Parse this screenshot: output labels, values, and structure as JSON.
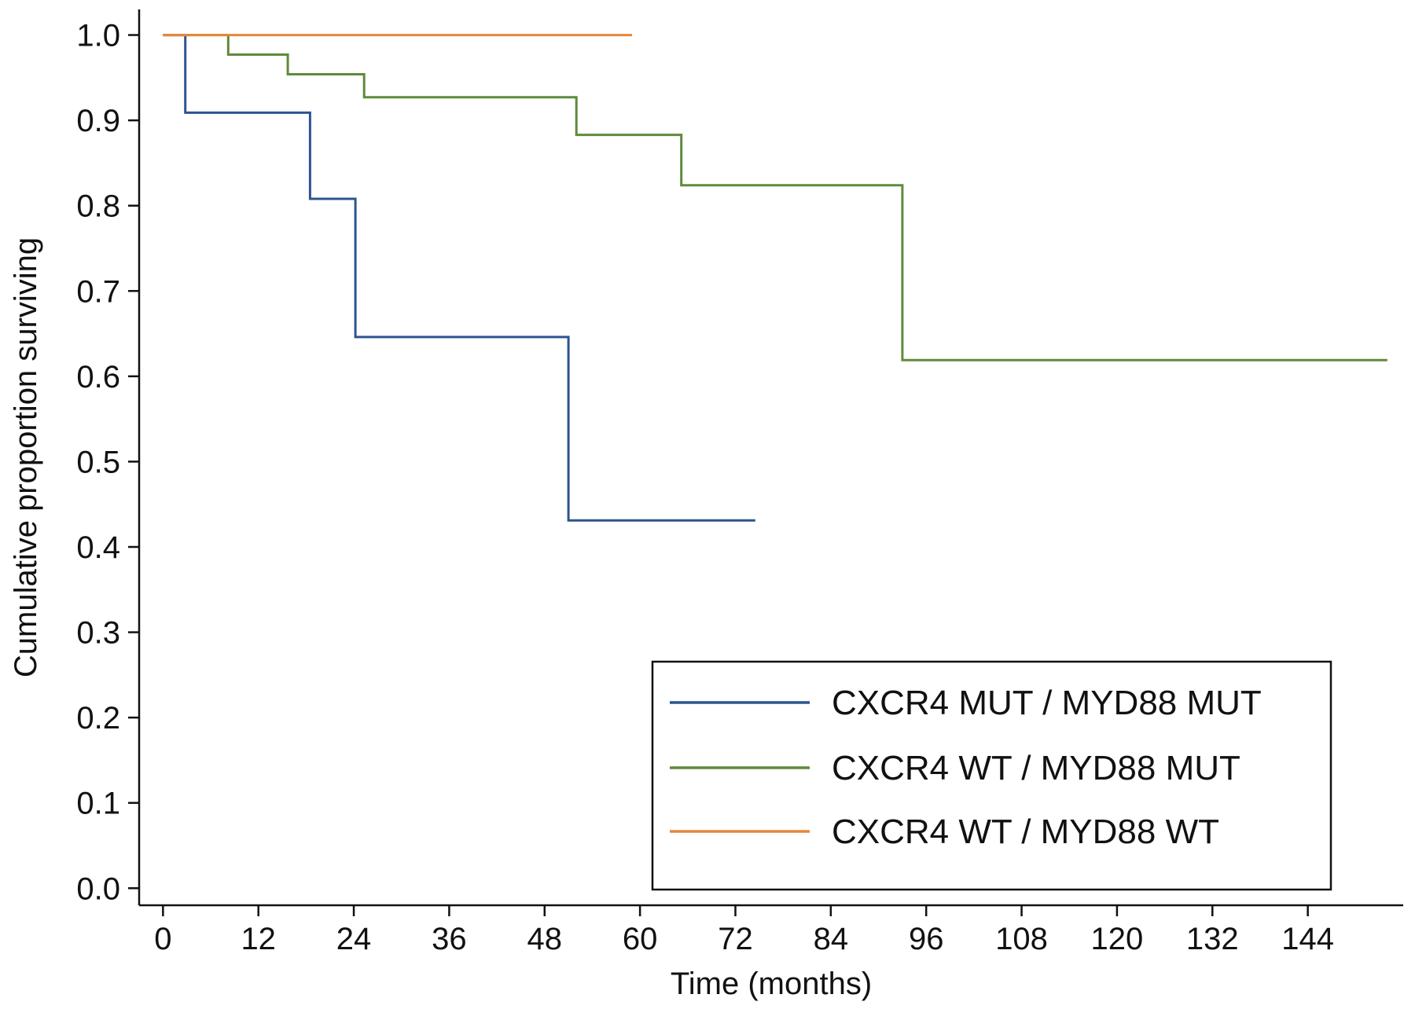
{
  "chart_data": {
    "type": "line",
    "step": true,
    "xlabel": "Time (months)",
    "ylabel": "Cumulative proportion surviving",
    "xlim": [
      -3,
      156
    ],
    "ylim": [
      -0.02,
      1.03
    ],
    "xticks": [
      0,
      12,
      24,
      36,
      48,
      60,
      72,
      84,
      96,
      108,
      120,
      132,
      144
    ],
    "yticks": [
      0.0,
      0.1,
      0.2,
      0.3,
      0.4,
      0.5,
      0.6,
      0.7,
      0.8,
      0.9,
      1.0
    ],
    "grid": false,
    "legend_position": "bottom-right",
    "series": [
      {
        "name": "CXCR4 MUT / MYD88 MUT",
        "color": "#2c5490",
        "points": [
          [
            0,
            1.0
          ],
          [
            2.8,
            1.0
          ],
          [
            2.8,
            0.909
          ],
          [
            18.5,
            0.909
          ],
          [
            18.5,
            0.808
          ],
          [
            24.2,
            0.808
          ],
          [
            24.2,
            0.646
          ],
          [
            51,
            0.646
          ],
          [
            51,
            0.431
          ],
          [
            74.5,
            0.431
          ]
        ]
      },
      {
        "name": "CXCR4 WT / MYD88 MUT",
        "color": "#5f8a3a",
        "points": [
          [
            0,
            1.0
          ],
          [
            8.2,
            1.0
          ],
          [
            8.2,
            0.977
          ],
          [
            15.7,
            0.977
          ],
          [
            15.7,
            0.954
          ],
          [
            25.3,
            0.954
          ],
          [
            25.3,
            0.927
          ],
          [
            52,
            0.927
          ],
          [
            52,
            0.883
          ],
          [
            65.2,
            0.883
          ],
          [
            65.2,
            0.824
          ],
          [
            93,
            0.824
          ],
          [
            93,
            0.619
          ],
          [
            154,
            0.619
          ]
        ]
      },
      {
        "name": "CXCR4 WT / MYD88 WT",
        "color": "#e8873a",
        "points": [
          [
            0,
            1.0
          ],
          [
            59,
            1.0
          ]
        ]
      }
    ]
  }
}
